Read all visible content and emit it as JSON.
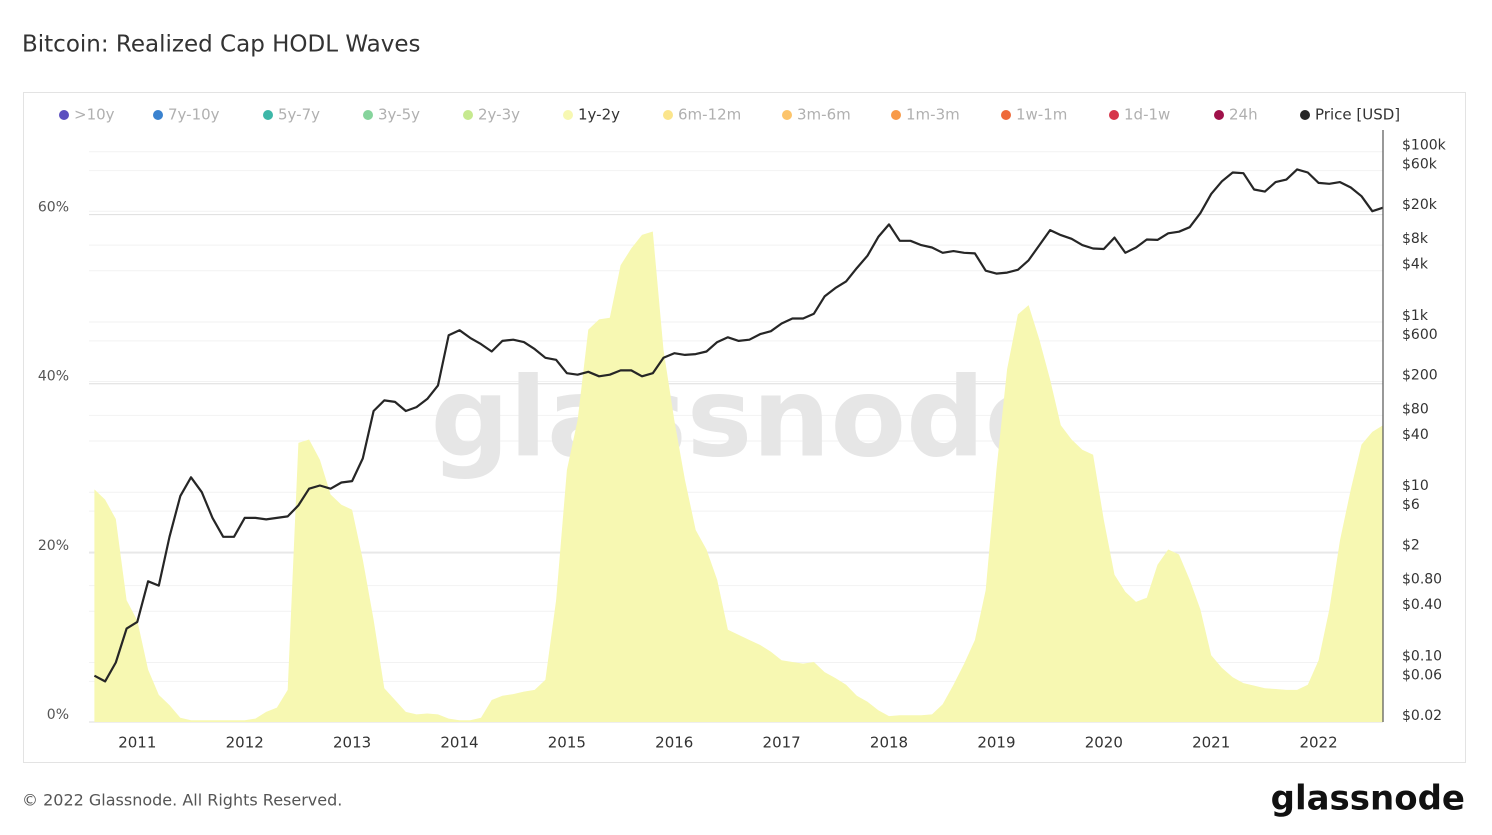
{
  "chart_data": {
    "type": "area_line",
    "title": "Bitcoin: Realized Cap HODL Waves",
    "watermark": "glassnode",
    "footer": "© 2022 Glassnode. All Rights Reserved.",
    "logo": "glassnode",
    "x": [
      2010.6,
      2010.7,
      2010.8,
      2010.9,
      2011.0,
      2011.1,
      2011.2,
      2011.3,
      2011.4,
      2011.5,
      2011.6,
      2011.7,
      2011.8,
      2011.9,
      2012.0,
      2012.1,
      2012.2,
      2012.3,
      2012.4,
      2012.5,
      2012.6,
      2012.7,
      2012.8,
      2012.9,
      2013.0,
      2013.1,
      2013.2,
      2013.3,
      2013.4,
      2013.5,
      2013.6,
      2013.7,
      2013.8,
      2013.9,
      2014.0,
      2014.1,
      2014.2,
      2014.3,
      2014.4,
      2014.5,
      2014.6,
      2014.7,
      2014.8,
      2014.9,
      2015.0,
      2015.1,
      2015.2,
      2015.3,
      2015.4,
      2015.5,
      2015.6,
      2015.7,
      2015.8,
      2015.9,
      2016.0,
      2016.1,
      2016.2,
      2016.3,
      2016.4,
      2016.5,
      2016.6,
      2016.7,
      2016.8,
      2016.9,
      2017.0,
      2017.1,
      2017.2,
      2017.3,
      2017.4,
      2017.5,
      2017.6,
      2017.7,
      2017.8,
      2017.9,
      2018.0,
      2018.1,
      2018.2,
      2018.3,
      2018.4,
      2018.5,
      2018.6,
      2018.7,
      2018.8,
      2018.9,
      2019.0,
      2019.1,
      2019.2,
      2019.3,
      2019.4,
      2019.5,
      2019.6,
      2019.7,
      2019.8,
      2019.9,
      2020.0,
      2020.1,
      2020.2,
      2020.3,
      2020.4,
      2020.5,
      2020.6,
      2020.7,
      2020.8,
      2020.9,
      2021.0,
      2021.1,
      2021.2,
      2021.3,
      2021.4,
      2021.5,
      2021.6,
      2021.7,
      2021.8,
      2021.9,
      2022.0,
      2022.1,
      2022.2,
      2022.3,
      2022.4,
      2022.5,
      2022.6
    ],
    "xlim": [
      2010.55,
      2022.6
    ],
    "xticks": [
      2011,
      2012,
      2013,
      2014,
      2015,
      2016,
      2017,
      2018,
      2019,
      2020,
      2021,
      2022
    ],
    "ylim": [
      0,
      70
    ],
    "yticks": [
      {
        "value": 0,
        "label": "0%"
      },
      {
        "value": 20,
        "label": "20%"
      },
      {
        "value": 40,
        "label": "40%"
      },
      {
        "value": 60,
        "label": "60%"
      }
    ],
    "y2lim": [
      0.02,
      180000
    ],
    "y2log": true,
    "y2ticks": [
      {
        "value": 100000,
        "label": "$100k"
      },
      {
        "value": 60000,
        "label": "$60k"
      },
      {
        "value": 20000,
        "label": "$20k"
      },
      {
        "value": 8000,
        "label": "$8k"
      },
      {
        "value": 4000,
        "label": "$4k"
      },
      {
        "value": 1000,
        "label": "$1k"
      },
      {
        "value": 600,
        "label": "$600"
      },
      {
        "value": 200,
        "label": "$200"
      },
      {
        "value": 80,
        "label": "$80"
      },
      {
        "value": 40,
        "label": "$40"
      },
      {
        "value": 10,
        "label": "$10"
      },
      {
        "value": 6,
        "label": "$6"
      },
      {
        "value": 2,
        "label": "$2"
      },
      {
        "value": 0.8,
        "label": "$0.80"
      },
      {
        "value": 0.4,
        "label": "$0.40"
      },
      {
        "value": 0.1,
        "label": "$0.10"
      },
      {
        "value": 0.06,
        "label": "$0.06"
      },
      {
        "value": 0.02,
        "label": "$0.02"
      }
    ],
    "grid": true,
    "legend": "top",
    "series": [
      {
        "name": ">10y",
        "color": "#5b4fbf",
        "visible": false
      },
      {
        "name": "7y-10y",
        "color": "#3a82cf",
        "visible": false
      },
      {
        "name": "5y-7y",
        "color": "#3db7a8",
        "visible": false
      },
      {
        "name": "3y-5y",
        "color": "#86d49c",
        "visible": false
      },
      {
        "name": "2y-3y",
        "color": "#c6e98f",
        "visible": false
      },
      {
        "name": "1y-2y",
        "color": "#f7f8b2",
        "visible": true,
        "values": [
          27.5,
          26.3,
          24,
          14.4,
          12,
          6.2,
          3.2,
          2,
          0.5,
          0.2,
          0.2,
          0.2,
          0.2,
          0.2,
          0.2,
          0.4,
          1.2,
          1.7,
          3.8,
          33,
          33.4,
          31,
          26.9,
          25.7,
          25.1,
          19.2,
          12.1,
          4,
          2.6,
          1.2,
          0.9,
          1,
          0.9,
          0.4,
          0.2,
          0.2,
          0.5,
          2.6,
          3.1,
          3.3,
          3.6,
          3.8,
          5,
          14.4,
          29.8,
          35.7,
          46.4,
          47.6,
          47.8,
          54,
          56,
          57.6,
          58,
          44,
          35.7,
          28.6,
          22.7,
          20.4,
          16.8,
          10.9,
          10.3,
          9.7,
          9.1,
          8.3,
          7.3,
          7.1,
          6.9,
          7.1,
          5.9,
          5.2,
          4.4,
          3.1,
          2.4,
          1.4,
          0.7,
          0.8,
          0.8,
          0.8,
          0.9,
          2.1,
          4.4,
          6.9,
          9.7,
          15.6,
          29.8,
          41.7,
          48.2,
          49.3,
          45.2,
          40.5,
          35.1,
          33.4,
          32.2,
          31.6,
          23.9,
          17.4,
          15.4,
          14.2,
          14.7,
          18.6,
          20.4,
          19.8,
          16.8,
          13.3,
          7.9,
          6.4,
          5.3,
          4.6,
          4.3,
          4,
          3.9,
          3.8,
          3.8,
          4.4,
          7.3,
          13.3,
          21.5,
          27.5,
          32.8,
          34.3,
          35.1
        ]
      },
      {
        "name": "6m-12m",
        "color": "#fbe58c",
        "visible": false
      },
      {
        "name": "3m-6m",
        "color": "#fcc46b",
        "visible": false
      },
      {
        "name": "1m-3m",
        "color": "#f89a48",
        "visible": false
      },
      {
        "name": "1w-1m",
        "color": "#ee6a3a",
        "visible": false
      },
      {
        "name": "1d-1w",
        "color": "#d6354a",
        "visible": false
      },
      {
        "name": "24h",
        "color": "#a0114a",
        "visible": false
      },
      {
        "name": "Price [USD]",
        "color": "#262626",
        "visible": true,
        "axis": "y2",
        "values": [
          0.07,
          0.06,
          0.1,
          0.25,
          0.3,
          0.9,
          0.8,
          3,
          9,
          15,
          10,
          5,
          3,
          3,
          5,
          5,
          4.8,
          5,
          5.2,
          7,
          11,
          12,
          11,
          13,
          13.5,
          25,
          90,
          120,
          115,
          90,
          100,
          125,
          180,
          700,
          800,
          650,
          550,
          450,
          600,
          620,
          580,
          480,
          380,
          360,
          250,
          240,
          260,
          230,
          240,
          270,
          270,
          230,
          250,
          380,
          430,
          410,
          420,
          450,
          580,
          660,
          600,
          620,
          720,
          780,
          960,
          1100,
          1100,
          1250,
          2000,
          2500,
          3000,
          4300,
          6000,
          10000,
          14000,
          9000,
          9000,
          8000,
          7500,
          6500,
          6800,
          6500,
          6400,
          4000,
          3700,
          3800,
          4100,
          5300,
          8000,
          12000,
          10500,
          9500,
          8000,
          7300,
          7200,
          9800,
          6500,
          7500,
          9300,
          9200,
          11000,
          11500,
          13000,
          19000,
          32000,
          45000,
          57000,
          56000,
          36000,
          34000,
          44000,
          47000,
          62000,
          57000,
          43000,
          42000,
          44000,
          38000,
          30000,
          20000,
          22000
        ]
      }
    ]
  }
}
